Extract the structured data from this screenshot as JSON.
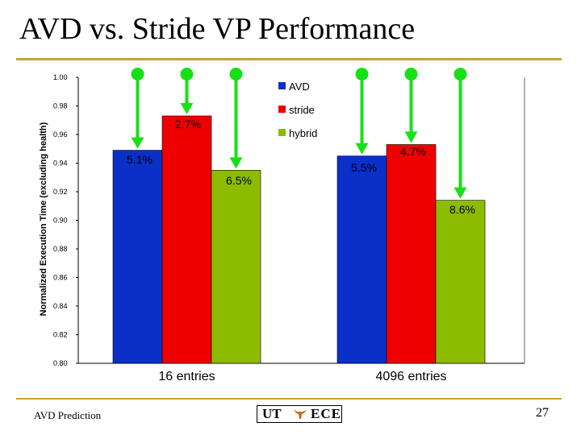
{
  "slide": {
    "title": "AVD vs. Stride VP Performance",
    "footer_left": "AVD Prediction",
    "page_number": "27",
    "logo_left": "UT",
    "logo_right": "ECE"
  },
  "colors": {
    "AVD": "#0b2fc9",
    "stride": "#ee0000",
    "hybrid": "#8dbb00",
    "arrow": "#17e017",
    "rule": "#c8a532"
  },
  "chart_data": {
    "type": "bar",
    "title": "",
    "xlabel": "",
    "ylabel": "Normalized Execution Time (excluding health)",
    "ylim": [
      0.8,
      1.0
    ],
    "yticks": [
      "0.80",
      "0.82",
      "0.84",
      "0.86",
      "0.88",
      "0.90",
      "0.92",
      "0.94",
      "0.96",
      "0.98",
      "1.00"
    ],
    "categories": [
      "16 entries",
      "4096 entries"
    ],
    "series": [
      {
        "name": "AVD",
        "values": [
          0.949,
          0.945
        ],
        "labels": [
          "5.1%",
          "5.5%"
        ]
      },
      {
        "name": "stride",
        "values": [
          0.973,
          0.953
        ],
        "labels": [
          "2.7%",
          "4.7%"
        ]
      },
      {
        "name": "hybrid",
        "values": [
          0.935,
          0.914
        ],
        "labels": [
          "6.5%",
          "8.6%"
        ]
      }
    ],
    "legend": {
      "position": "top-right",
      "entries": [
        "AVD",
        "stride",
        "hybrid"
      ]
    },
    "grid": false
  }
}
